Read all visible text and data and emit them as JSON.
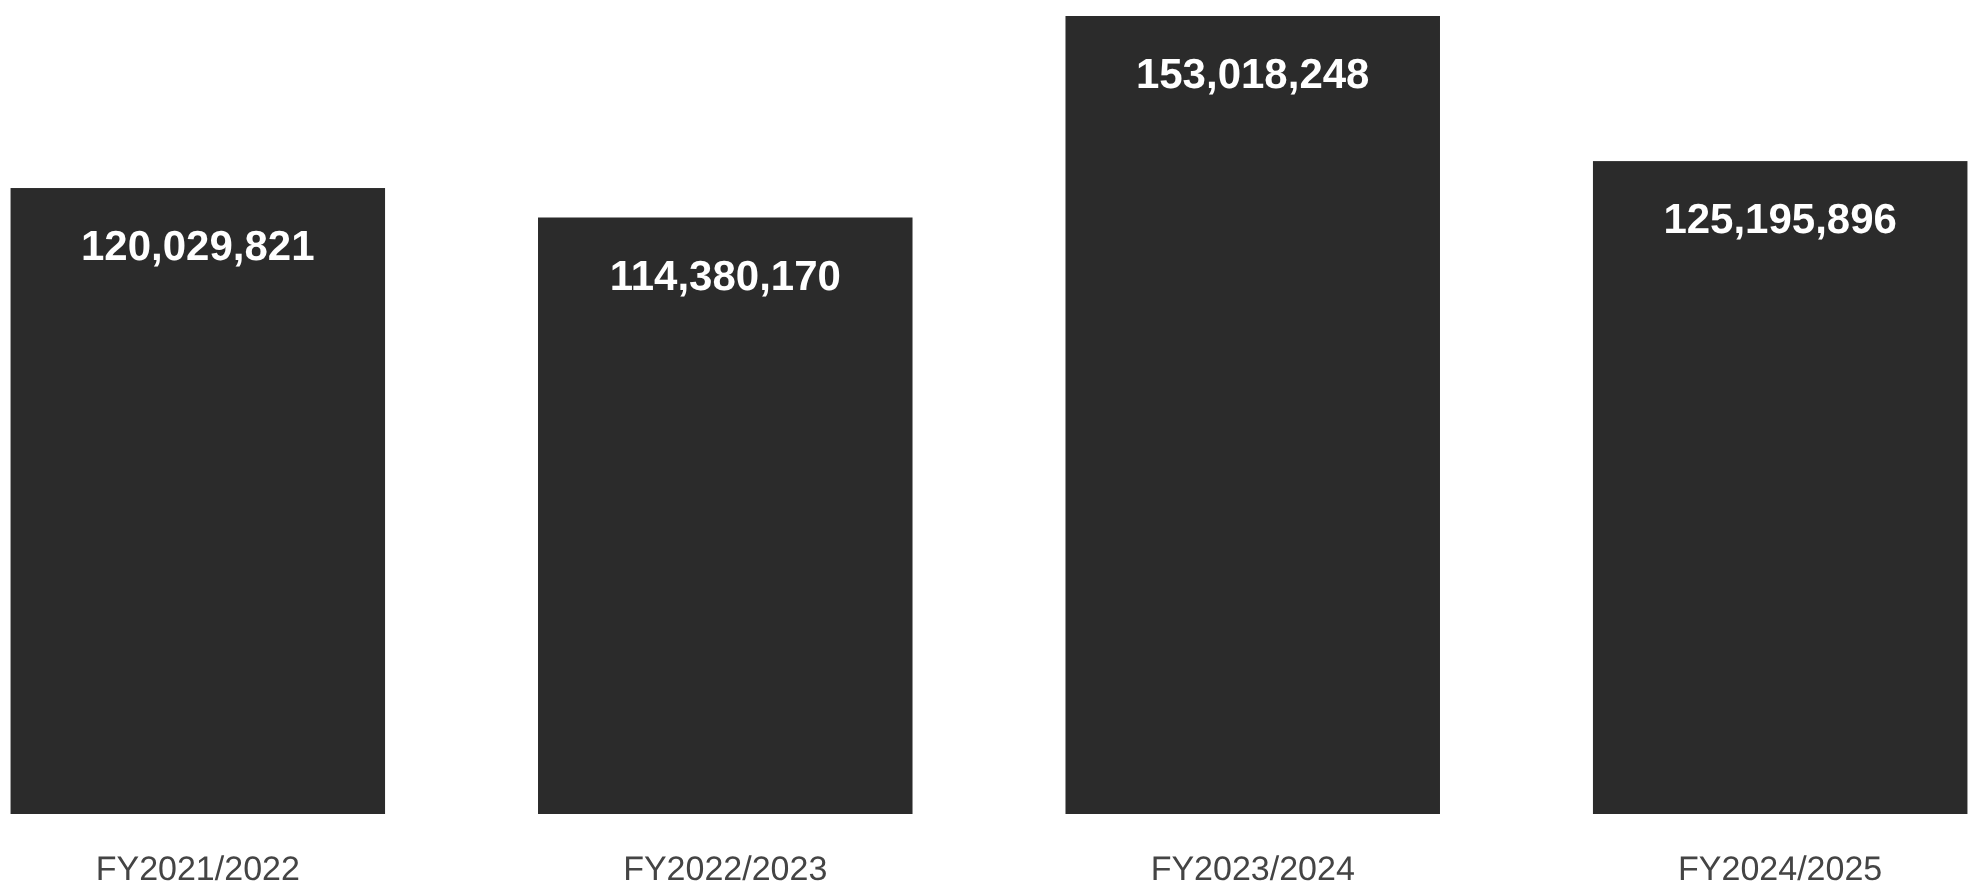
{
  "chart_data": {
    "type": "bar",
    "categories": [
      "FY2021/2022",
      "FY2022/2023",
      "FY2023/2024",
      "FY2024/2025"
    ],
    "values": [
      120029821,
      114380170,
      153018248,
      125195896
    ],
    "value_labels": [
      "120,029,821",
      "114,380,170",
      "153,018,248",
      "125,195,896"
    ],
    "color": "#2b2b2b"
  }
}
